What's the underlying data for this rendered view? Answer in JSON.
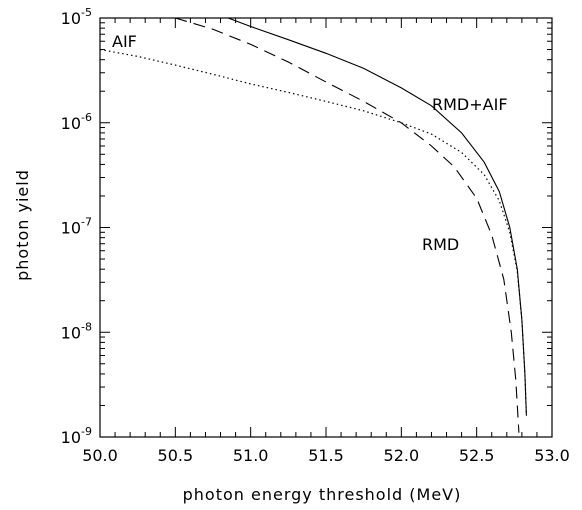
{
  "chart_data": {
    "type": "line",
    "xlabel": "photon energy threshold (MeV)",
    "ylabel": "photon yield",
    "xlim": [
      50.0,
      53.0
    ],
    "ylim": [
      1e-09,
      1e-05
    ],
    "yscale": "log",
    "x_ticks": [
      {
        "value": 50.0,
        "label": "50.0"
      },
      {
        "value": 50.5,
        "label": "50.5"
      },
      {
        "value": 51.0,
        "label": "51.0"
      },
      {
        "value": 51.5,
        "label": "51.5"
      },
      {
        "value": 52.0,
        "label": "52.0"
      },
      {
        "value": 52.5,
        "label": "52.5"
      },
      {
        "value": 53.0,
        "label": "53.0"
      }
    ],
    "y_ticks": [
      {
        "value": 1e-05,
        "base": "10",
        "exp": "-5"
      },
      {
        "value": 1e-06,
        "base": "10",
        "exp": "-6"
      },
      {
        "value": 1e-07,
        "base": "10",
        "exp": "-7"
      },
      {
        "value": 1e-08,
        "base": "10",
        "exp": "-8"
      },
      {
        "value": 1e-09,
        "base": "10",
        "exp": "-9"
      }
    ],
    "series": [
      {
        "name": "RMD+AIF",
        "style": "solid",
        "x": [
          50.85,
          51.0,
          51.25,
          51.5,
          51.75,
          52.0,
          52.2,
          52.4,
          52.55,
          52.65,
          52.72,
          52.77,
          52.8,
          52.82,
          52.83
        ],
        "y": [
          1e-05,
          8.3e-06,
          6.2e-06,
          4.6e-06,
          3.3e-06,
          2.15e-06,
          1.45e-06,
          8e-07,
          4.2e-07,
          2.2e-07,
          1e-07,
          4e-08,
          1.3e-08,
          4e-09,
          1.6e-09
        ]
      },
      {
        "name": "AIF",
        "style": "dotted",
        "x": [
          50.0,
          50.25,
          50.5,
          50.75,
          51.0,
          51.25,
          51.5,
          51.75,
          52.0,
          52.2,
          52.4,
          52.55,
          52.65,
          52.72,
          52.77,
          52.8,
          52.82,
          52.83
        ],
        "y": [
          5e-06,
          4.3e-06,
          3.55e-06,
          2.9e-06,
          2.35e-06,
          1.95e-06,
          1.6e-06,
          1.3e-06,
          1e-06,
          7.8e-07,
          5.2e-07,
          3.2e-07,
          1.8e-07,
          9e-08,
          3.8e-08,
          1.3e-08,
          4e-09,
          1.6e-09
        ]
      },
      {
        "name": "RMD",
        "style": "dashed",
        "x": [
          50.5,
          50.75,
          51.0,
          51.25,
          51.5,
          51.75,
          52.0,
          52.2,
          52.35,
          52.5,
          52.6,
          52.68,
          52.73,
          52.76,
          52.78
        ],
        "y": [
          1e-05,
          7.8e-06,
          5.6e-06,
          3.8e-06,
          2.45e-06,
          1.6e-06,
          1e-06,
          6e-07,
          3.8e-07,
          1.9e-07,
          8.5e-08,
          3.2e-08,
          1e-08,
          3.5e-09,
          1.1e-09
        ]
      }
    ],
    "labels": {
      "AIF": "AIF",
      "RMD_AIF": "RMD+AIF",
      "RMD": "RMD"
    }
  }
}
